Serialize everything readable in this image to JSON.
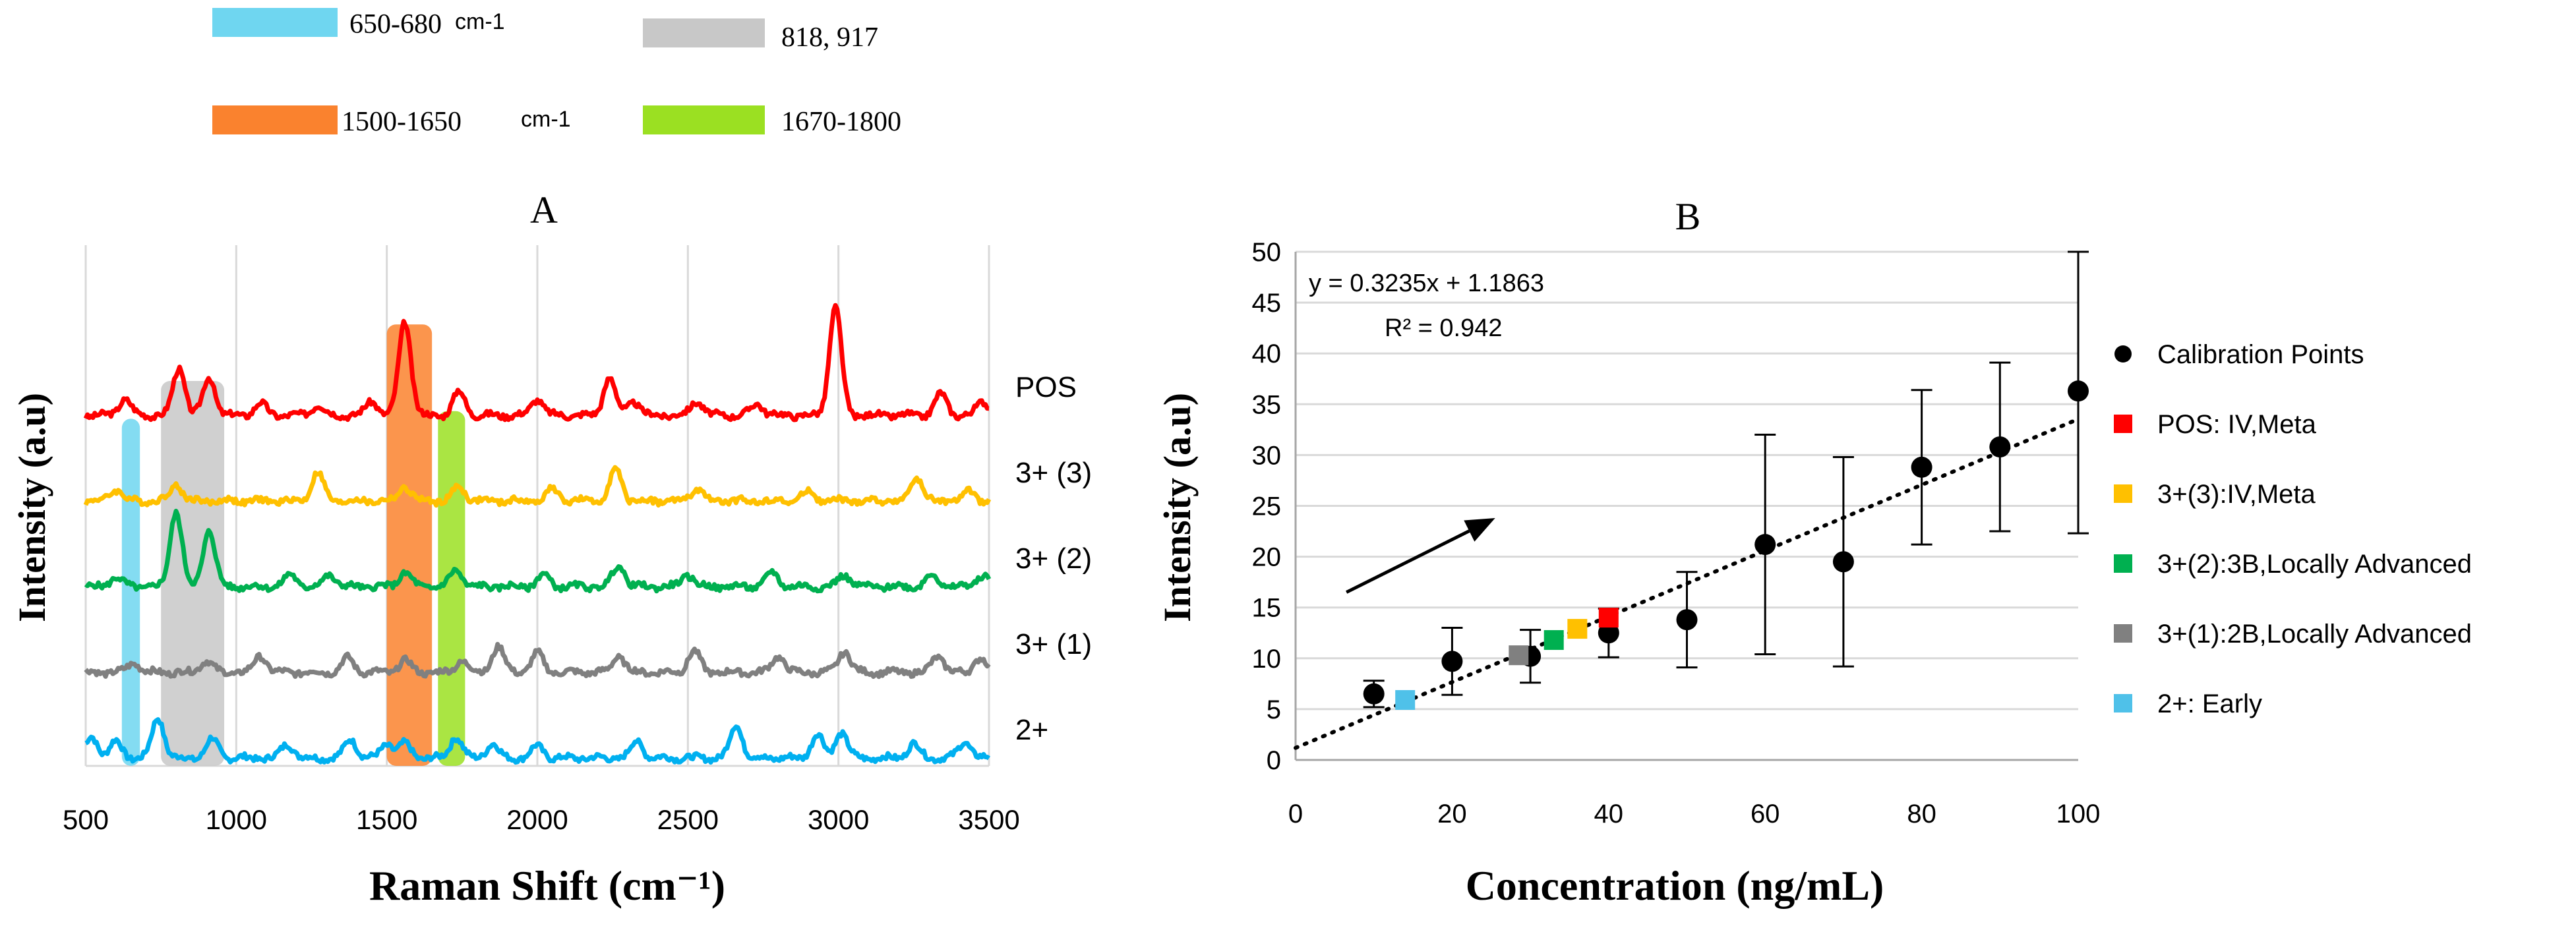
{
  "legend_top": [
    {
      "label": "650-680",
      "unit": "cm-1",
      "color": "#6FD6F0"
    },
    {
      "label": "818, 917",
      "unit": "",
      "color": "#C8C8C8"
    },
    {
      "label": "1500-1650",
      "unit": "cm-1",
      "color": "#FA822E"
    },
    {
      "label": "1670-1800",
      "unit": "",
      "color": "#9BE022"
    }
  ],
  "chart_data": [
    {
      "id": "A",
      "type": "line",
      "title": "A",
      "xlabel": "Raman Shift (cm⁻¹)",
      "ylabel": "Intensity (a.u)",
      "xlim": [
        500,
        3500
      ],
      "xticks": [
        500,
        1000,
        1500,
        2000,
        2500,
        3000,
        3500
      ],
      "xtick_labels": [
        "500",
        "1000",
        "1500",
        "2000",
        "2500",
        "3000",
        "3500"
      ],
      "grid": "vertical",
      "bands": [
        {
          "range": [
            620,
            680
          ],
          "color": "#6FD6F0",
          "top_level": 0.9
        },
        {
          "range": [
            750,
            960
          ],
          "color": "#C8C8C8",
          "top_level": 1.0
        },
        {
          "range": [
            1500,
            1650
          ],
          "color": "#FA822E",
          "top_level": 1.15
        },
        {
          "range": [
            1670,
            1760
          ],
          "color": "#9BE022",
          "top_level": 0.92
        }
      ],
      "series": [
        {
          "name": "POS",
          "color": "#FF0000",
          "offset": 4.0,
          "peaks": [
            [
              630,
              0.35
            ],
            [
              810,
              1.0
            ],
            [
              910,
              0.8
            ],
            [
              1080,
              0.25
            ],
            [
              1270,
              0.22
            ],
            [
              1450,
              0.3
            ],
            [
              1560,
              2.0
            ],
            [
              1740,
              0.5
            ],
            [
              2000,
              0.35
            ],
            [
              2240,
              0.8
            ],
            [
              2320,
              0.3
            ],
            [
              2530,
              0.3
            ],
            [
              2730,
              0.25
            ],
            [
              2990,
              2.3
            ],
            [
              3340,
              0.45
            ],
            [
              3480,
              0.3
            ]
          ]
        },
        {
          "name": "3+ (3)",
          "color": "#FFC000",
          "offset": 3.0,
          "peaks": [
            [
              600,
              0.25
            ],
            [
              800,
              0.35
            ],
            [
              1270,
              0.6
            ],
            [
              1560,
              0.3
            ],
            [
              1740,
              0.3
            ],
            [
              2050,
              0.25
            ],
            [
              2260,
              0.65
            ],
            [
              2530,
              0.25
            ],
            [
              2900,
              0.2
            ],
            [
              3260,
              0.5
            ],
            [
              3430,
              0.2
            ]
          ]
        },
        {
          "name": "3+ (2)",
          "color": "#00B050",
          "offset": 2.0,
          "peaks": [
            [
              600,
              0.2
            ],
            [
              800,
              1.6
            ],
            [
              910,
              1.2
            ],
            [
              1180,
              0.25
            ],
            [
              1310,
              0.25
            ],
            [
              1560,
              0.3
            ],
            [
              1730,
              0.35
            ],
            [
              2020,
              0.25
            ],
            [
              2270,
              0.45
            ],
            [
              2500,
              0.25
            ],
            [
              2780,
              0.3
            ],
            [
              3020,
              0.25
            ],
            [
              3310,
              0.25
            ],
            [
              3480,
              0.25
            ]
          ]
        },
        {
          "name": "3+ (1)",
          "color": "#808080",
          "offset": 1.0,
          "peaks": [
            [
              660,
              0.2
            ],
            [
              900,
              0.25
            ],
            [
              1080,
              0.35
            ],
            [
              1370,
              0.3
            ],
            [
              1560,
              0.25
            ],
            [
              1750,
              0.25
            ],
            [
              1870,
              0.55
            ],
            [
              2000,
              0.4
            ],
            [
              2270,
              0.35
            ],
            [
              2520,
              0.45
            ],
            [
              2800,
              0.35
            ],
            [
              3020,
              0.45
            ],
            [
              3330,
              0.35
            ],
            [
              3470,
              0.3
            ]
          ]
        },
        {
          "name": "2+",
          "color": "#00B0F0",
          "offset": 0.0,
          "peaks": [
            [
              520,
              0.45
            ],
            [
              600,
              0.35
            ],
            [
              740,
              0.85
            ],
            [
              920,
              0.4
            ],
            [
              1170,
              0.3
            ],
            [
              1380,
              0.4
            ],
            [
              1500,
              0.3
            ],
            [
              1560,
              0.3
            ],
            [
              1730,
              0.45
            ],
            [
              1850,
              0.3
            ],
            [
              2000,
              0.25
            ],
            [
              2330,
              0.35
            ],
            [
              2660,
              0.7
            ],
            [
              2930,
              0.5
            ],
            [
              3010,
              0.55
            ],
            [
              3250,
              0.3
            ],
            [
              3420,
              0.35
            ]
          ]
        }
      ]
    },
    {
      "id": "B",
      "type": "scatter",
      "title": "B",
      "xlabel": "Concentration (ng/mL)",
      "ylabel": "Intensity (a.u)",
      "xlim": [
        0,
        100
      ],
      "ylim": [
        0,
        50
      ],
      "xticks": [
        0,
        20,
        40,
        60,
        80,
        100
      ],
      "yticks": [
        0,
        5,
        10,
        15,
        20,
        25,
        30,
        35,
        40,
        45,
        50
      ],
      "trendline": {
        "slope": 0.3235,
        "intercept": 1.1863,
        "equation": "y = 0.3235x + 1.1863",
        "r2_label": "R² = 0.942"
      },
      "calibration": {
        "name": "Calibration Points",
        "color": "#000000",
        "x": [
          10,
          20,
          30,
          40,
          50,
          60,
          70,
          80,
          90,
          100
        ],
        "y": [
          6.5,
          9.7,
          10.2,
          12.5,
          13.8,
          21.2,
          19.5,
          28.8,
          30.8,
          36.3
        ],
        "error": [
          1.3,
          3.3,
          2.6,
          2.4,
          4.7,
          10.8,
          10.3,
          7.6,
          8.3,
          14.0
        ]
      },
      "samples": [
        {
          "name": "POS: IV,Meta",
          "color": "#FF0000",
          "x": 40,
          "y": 14.0
        },
        {
          "name": "3+(3):IV,Meta",
          "color": "#FFC000",
          "x": 36,
          "y": 12.9
        },
        {
          "name": "3+(2):3B,Locally Advanced",
          "color": "#00B050",
          "x": 33,
          "y": 11.8
        },
        {
          "name": "3+(1):2B,Locally Advanced",
          "color": "#808080",
          "x": 28.5,
          "y": 10.3
        },
        {
          "name": "2+: Early",
          "color": "#4FC1E9",
          "x": 14,
          "y": 5.9
        }
      ],
      "arrow": {
        "from": [
          6.5,
          16.5
        ],
        "to": [
          25.5,
          23.8
        ]
      }
    }
  ]
}
